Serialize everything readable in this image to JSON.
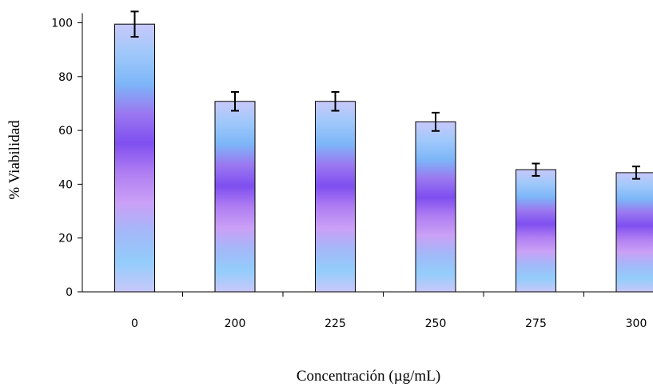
{
  "chart_data": {
    "type": "bar",
    "title": "",
    "xlabel": "Concentración (µg/mL)",
    "ylabel": "% Viabilidad",
    "categories": [
      "0",
      "200",
      "225",
      "250",
      "275",
      "300"
    ],
    "values": [
      99.5,
      70.8,
      70.8,
      63.2,
      45.4,
      44.3
    ],
    "errors": [
      4.7,
      3.5,
      3.5,
      3.4,
      2.3,
      2.3
    ],
    "ylim": [
      0,
      100
    ],
    "yticks": [
      0,
      20,
      40,
      60,
      80,
      100
    ],
    "grid": false,
    "legend": "none",
    "colors": {
      "bar_gradient": [
        "#c8c8fa",
        "#9fc8fa",
        "#7db6f8",
        "#9a78f0",
        "#7f4ff0",
        "#b07ef2",
        "#caa0f6",
        "#a3b8f8",
        "#93cdfb",
        "#c8c8fa"
      ],
      "bar_border": "#000000",
      "axis": "#000000"
    }
  }
}
